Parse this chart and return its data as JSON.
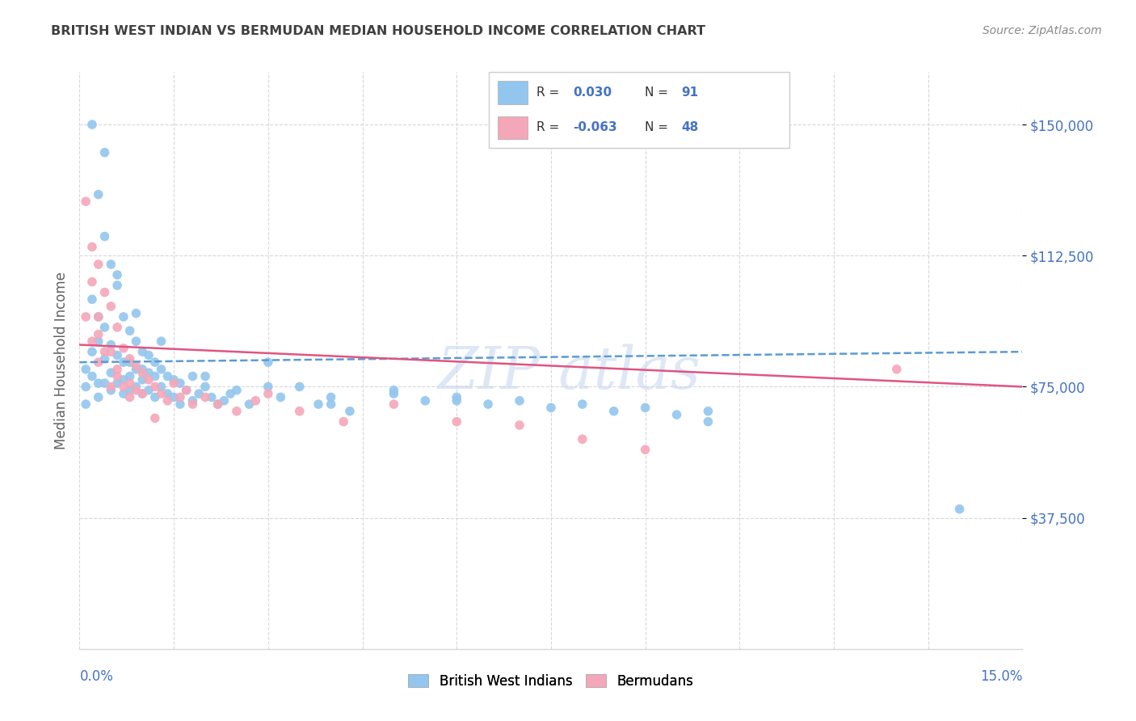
{
  "title": "BRITISH WEST INDIAN VS BERMUDAN MEDIAN HOUSEHOLD INCOME CORRELATION CHART",
  "source": "Source: ZipAtlas.com",
  "ylabel": "Median Household Income",
  "xmin": 0.0,
  "xmax": 0.15,
  "ymin": 0,
  "ymax": 165000,
  "blue_color": "#93C6EE",
  "pink_color": "#F4A7B9",
  "blue_line_color": "#5B9BD5",
  "pink_line_color": "#E05580",
  "axis_label_color": "#4472C4",
  "title_color": "#404040",
  "source_color": "#888888",
  "ylabel_color": "#606060",
  "grid_color": "#D8D8D8",
  "watermark_color": "#C8D8F0",
  "blue_scatter_x": [
    0.001,
    0.001,
    0.001,
    0.002,
    0.002,
    0.002,
    0.002,
    0.003,
    0.003,
    0.003,
    0.003,
    0.003,
    0.004,
    0.004,
    0.004,
    0.004,
    0.005,
    0.005,
    0.005,
    0.005,
    0.006,
    0.006,
    0.006,
    0.007,
    0.007,
    0.007,
    0.007,
    0.008,
    0.008,
    0.008,
    0.008,
    0.009,
    0.009,
    0.009,
    0.01,
    0.01,
    0.01,
    0.01,
    0.011,
    0.011,
    0.011,
    0.012,
    0.012,
    0.012,
    0.013,
    0.013,
    0.014,
    0.014,
    0.015,
    0.015,
    0.016,
    0.016,
    0.017,
    0.018,
    0.018,
    0.019,
    0.02,
    0.021,
    0.022,
    0.023,
    0.024,
    0.025,
    0.027,
    0.03,
    0.032,
    0.035,
    0.038,
    0.04,
    0.043,
    0.05,
    0.055,
    0.06,
    0.065,
    0.07,
    0.075,
    0.08,
    0.085,
    0.09,
    0.095,
    0.1,
    0.004,
    0.006,
    0.009,
    0.013,
    0.02,
    0.03,
    0.04,
    0.05,
    0.06,
    0.1,
    0.14
  ],
  "blue_scatter_y": [
    80000,
    75000,
    70000,
    150000,
    100000,
    85000,
    78000,
    130000,
    95000,
    88000,
    76000,
    72000,
    118000,
    92000,
    83000,
    76000,
    110000,
    87000,
    79000,
    74000,
    104000,
    84000,
    76000,
    95000,
    82000,
    77000,
    73000,
    91000,
    82000,
    78000,
    74000,
    88000,
    80000,
    75000,
    85000,
    80000,
    77000,
    73000,
    84000,
    79000,
    74000,
    82000,
    78000,
    72000,
    80000,
    75000,
    78000,
    73000,
    77000,
    72000,
    76000,
    70000,
    74000,
    78000,
    71000,
    73000,
    75000,
    72000,
    70000,
    71000,
    73000,
    74000,
    70000,
    82000,
    72000,
    75000,
    70000,
    72000,
    68000,
    74000,
    71000,
    72000,
    70000,
    71000,
    69000,
    70000,
    68000,
    69000,
    67000,
    68000,
    142000,
    107000,
    96000,
    88000,
    78000,
    75000,
    70000,
    73000,
    71000,
    65000,
    40000
  ],
  "pink_scatter_x": [
    0.001,
    0.001,
    0.002,
    0.002,
    0.003,
    0.003,
    0.003,
    0.004,
    0.004,
    0.005,
    0.005,
    0.005,
    0.006,
    0.006,
    0.007,
    0.007,
    0.008,
    0.008,
    0.009,
    0.009,
    0.01,
    0.01,
    0.011,
    0.012,
    0.013,
    0.014,
    0.015,
    0.016,
    0.017,
    0.018,
    0.02,
    0.022,
    0.025,
    0.028,
    0.03,
    0.035,
    0.042,
    0.05,
    0.06,
    0.07,
    0.08,
    0.09,
    0.13,
    0.002,
    0.003,
    0.006,
    0.008,
    0.012
  ],
  "pink_scatter_y": [
    128000,
    95000,
    115000,
    88000,
    110000,
    95000,
    82000,
    102000,
    85000,
    98000,
    85000,
    75000,
    92000,
    80000,
    86000,
    75000,
    83000,
    76000,
    81000,
    74000,
    79000,
    73000,
    77000,
    75000,
    73000,
    71000,
    76000,
    72000,
    74000,
    70000,
    72000,
    70000,
    68000,
    71000,
    73000,
    68000,
    65000,
    70000,
    65000,
    64000,
    60000,
    57000,
    80000,
    105000,
    90000,
    78000,
    72000,
    66000
  ],
  "ytick_vals": [
    37500,
    75000,
    112500,
    150000
  ],
  "ytick_labels": [
    "$37,500",
    "$75,000",
    "$112,500",
    "$150,000"
  ],
  "blue_line_x": [
    0.0,
    0.15
  ],
  "blue_line_y": [
    82000,
    85000
  ],
  "pink_line_x": [
    0.0,
    0.15
  ],
  "pink_line_y": [
    87000,
    75000
  ]
}
